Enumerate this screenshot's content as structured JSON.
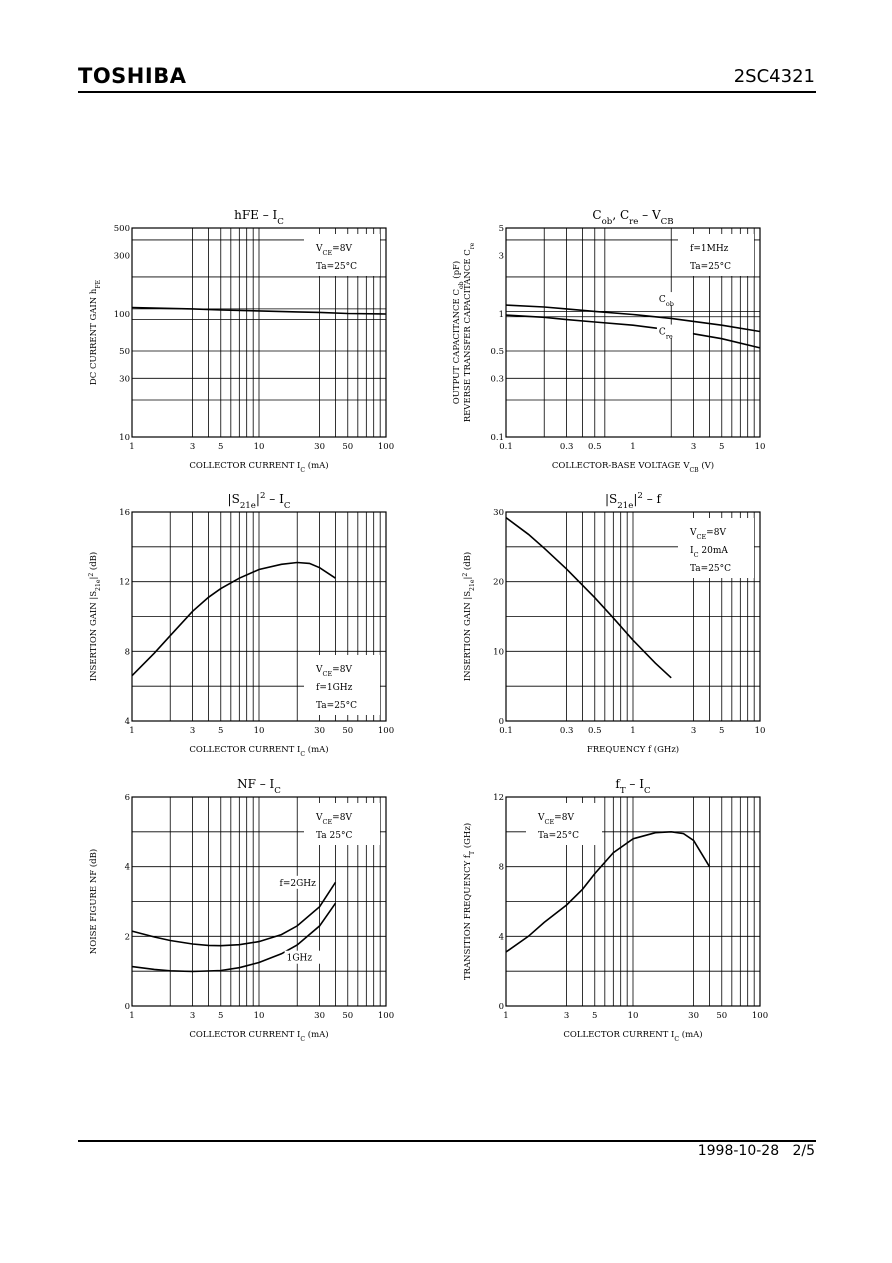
{
  "header": {
    "brand": "TOSHIBA",
    "part_number": "2SC4321"
  },
  "footer": {
    "date": "1998-10-28",
    "page": "2/5"
  },
  "chart_data": [
    {
      "id": "hfe",
      "type": "line",
      "title": "hFE – IC",
      "title_parts": [
        [
          "hFE",
          ""
        ],
        [
          " – I",
          ""
        ],
        [
          "C",
          "sub"
        ]
      ],
      "xlabel_parts": [
        [
          "COLLECTOR CURRENT   I",
          ""
        ],
        [
          "C",
          "sub"
        ],
        [
          "   (mA)",
          ""
        ]
      ],
      "ylabel_lines": [
        [
          [
            "DC CURRENT GAIN   h",
            ""
          ],
          [
            "FE",
            "sub"
          ]
        ]
      ],
      "xscale": "log",
      "yscale": "log",
      "xlim": [
        1,
        100
      ],
      "ylim": [
        10,
        500
      ],
      "xticks": [
        1,
        3,
        5,
        10,
        30,
        50,
        100
      ],
      "xtick_labels": [
        "1",
        "3",
        "5",
        "10",
        "30",
        "50",
        "100"
      ],
      "yticks": [
        10,
        30,
        50,
        100,
        300,
        500
      ],
      "ytick_labels": [
        "10",
        "30",
        "50",
        "100",
        "300",
        "500"
      ],
      "xgrid": [
        3,
        4,
        5,
        6,
        7,
        8,
        9,
        10,
        30,
        40,
        50,
        60,
        70,
        80,
        90
      ],
      "ygrid": [
        20,
        30,
        50,
        90,
        110,
        200,
        400
      ],
      "grid": true,
      "cond_pos": "top-right",
      "conditions": [
        [
          [
            "V",
            ""
          ],
          [
            "CE",
            "sub"
          ],
          [
            "=8V",
            ""
          ]
        ],
        [
          [
            "Ta=25°C",
            ""
          ]
        ]
      ],
      "series": [
        {
          "points": [
            [
              1,
              113
            ],
            [
              2,
              111
            ],
            [
              3,
              110
            ],
            [
              5,
              108
            ],
            [
              10,
              106
            ],
            [
              20,
              104
            ],
            [
              30,
              103
            ],
            [
              50,
              101
            ],
            [
              100,
              100
            ]
          ]
        }
      ]
    },
    {
      "id": "cap",
      "type": "line",
      "title": "Cob, Cre – VCB",
      "title_parts": [
        [
          "C",
          ""
        ],
        [
          "ob",
          "sub"
        ],
        [
          ", C",
          ""
        ],
        [
          "re",
          "sub"
        ],
        [
          "  –  V",
          ""
        ],
        [
          "CB",
          "sub"
        ]
      ],
      "xlabel_parts": [
        [
          "COLLECTOR-BASE VOLTAGE   V",
          ""
        ],
        [
          "CB",
          "sub"
        ],
        [
          "   (V)",
          ""
        ]
      ],
      "ylabel_lines": [
        [
          [
            "OUTPUT CAPACITANCE   C",
            ""
          ],
          [
            "ob",
            "sub"
          ],
          [
            "   (pF)",
            ""
          ]
        ],
        [
          [
            "REVERSE TRANSFER CAPACITANCE   C",
            ""
          ],
          [
            "re",
            "sub"
          ]
        ]
      ],
      "xscale": "log",
      "yscale": "log",
      "xlim": [
        0.1,
        10
      ],
      "ylim": [
        0.1,
        5
      ],
      "xticks": [
        0.1,
        0.3,
        0.5,
        1,
        3,
        5,
        10
      ],
      "xtick_labels": [
        "0.1",
        "0.3",
        "0.5",
        "1",
        "3",
        "5",
        "10"
      ],
      "yticks": [
        0.1,
        0.3,
        0.5,
        1,
        3,
        5
      ],
      "ytick_labels": [
        "0.1",
        "0.3",
        "0.5",
        "1",
        "3",
        "5"
      ],
      "xgrid": [
        0.2,
        0.3,
        0.4,
        0.5,
        0.6,
        2,
        3,
        4,
        5,
        6,
        7,
        8,
        9
      ],
      "ygrid": [
        0.2,
        0.3,
        0.5,
        0.95,
        1.05,
        2,
        4
      ],
      "grid": true,
      "cond_pos": "top-right",
      "conditions": [
        [
          [
            "f=1MHz",
            ""
          ]
        ],
        [
          [
            "Ta=25°C",
            ""
          ]
        ]
      ],
      "series": [
        {
          "name": "Cob",
          "name_parts": [
            [
              "C",
              ""
            ],
            [
              "ob",
              "sub"
            ]
          ],
          "label_at": [
            1.6,
            1.25
          ],
          "points": [
            [
              0.1,
              1.18
            ],
            [
              0.2,
              1.14
            ],
            [
              0.3,
              1.1
            ],
            [
              0.5,
              1.05
            ],
            [
              1,
              0.99
            ],
            [
              2,
              0.92
            ],
            [
              3,
              0.87
            ],
            [
              5,
              0.81
            ],
            [
              10,
              0.72
            ]
          ]
        },
        {
          "name": "Cre",
          "name_parts": [
            [
              "C",
              ""
            ],
            [
              "re",
              "sub"
            ]
          ],
          "label_at": [
            1.6,
            0.68
          ],
          "points": [
            [
              0.1,
              0.98
            ],
            [
              0.2,
              0.94
            ],
            [
              0.3,
              0.9
            ],
            [
              0.5,
              0.86
            ],
            [
              1,
              0.81
            ],
            [
              2,
              0.74
            ],
            [
              3,
              0.69
            ],
            [
              5,
              0.63
            ],
            [
              10,
              0.53
            ]
          ]
        }
      ]
    },
    {
      "id": "s21_ic",
      "type": "line",
      "title": "|S21e|2 – IC",
      "title_parts": [
        [
          "|S",
          ""
        ],
        [
          "21e",
          "sub"
        ],
        [
          "|",
          ""
        ],
        [
          "2",
          "sup"
        ],
        [
          " – I",
          ""
        ],
        [
          "C",
          "sub"
        ]
      ],
      "xlabel_parts": [
        [
          "COLLECTOR CURRENT   I",
          ""
        ],
        [
          "C",
          "sub"
        ],
        [
          "   (mA)",
          ""
        ]
      ],
      "ylabel_lines": [
        [
          [
            "INSERTION GAIN   |S",
            ""
          ],
          [
            "21e",
            "sub"
          ],
          [
            "|",
            ""
          ],
          [
            "2",
            "sup"
          ],
          [
            "   (dB)",
            ""
          ]
        ]
      ],
      "xscale": "log",
      "yscale": "linear",
      "xlim": [
        1,
        100
      ],
      "ylim": [
        4,
        16
      ],
      "xticks": [
        1,
        3,
        5,
        10,
        30,
        50,
        100
      ],
      "xtick_labels": [
        "1",
        "3",
        "5",
        "10",
        "30",
        "50",
        "100"
      ],
      "yticks": [
        4,
        8,
        12,
        16
      ],
      "ytick_labels": [
        "4",
        "8",
        "12",
        "16"
      ],
      "xgrid": [
        2,
        3,
        4,
        5,
        6,
        7,
        8,
        9,
        10,
        20,
        30,
        40,
        50,
        60,
        70,
        80,
        90
      ],
      "ygrid": [
        6,
        8,
        10,
        12,
        14
      ],
      "grid": true,
      "cond_pos": "bottom-right",
      "conditions": [
        [
          [
            "V",
            ""
          ],
          [
            "CE",
            "sub"
          ],
          [
            "=8V",
            ""
          ]
        ],
        [
          [
            "f=1GHz",
            ""
          ]
        ],
        [
          [
            "Ta=25°C",
            ""
          ]
        ]
      ],
      "series": [
        {
          "points": [
            [
              1,
              6.6
            ],
            [
              1.5,
              7.9
            ],
            [
              2,
              8.9
            ],
            [
              3,
              10.3
            ],
            [
              4,
              11.1
            ],
            [
              5,
              11.6
            ],
            [
              7,
              12.2
            ],
            [
              10,
              12.7
            ],
            [
              15,
              13.0
            ],
            [
              20,
              13.1
            ],
            [
              25,
              13.05
            ],
            [
              30,
              12.8
            ],
            [
              40,
              12.2
            ]
          ]
        }
      ]
    },
    {
      "id": "s21_f",
      "type": "line",
      "title": "|S21e|2 – f",
      "title_parts": [
        [
          "|S",
          ""
        ],
        [
          "21e",
          "sub"
        ],
        [
          "|",
          ""
        ],
        [
          "2",
          "sup"
        ],
        [
          "  –  f",
          ""
        ]
      ],
      "xlabel_parts": [
        [
          "FREQUENCY   f   (GHz)",
          ""
        ]
      ],
      "ylabel_lines": [
        [
          [
            "INSERTION GAIN   |S",
            ""
          ],
          [
            "21e",
            "sub"
          ],
          [
            "|",
            ""
          ],
          [
            "2",
            "sup"
          ],
          [
            "   (dB)",
            ""
          ]
        ]
      ],
      "xscale": "log",
      "yscale": "linear",
      "xlim": [
        0.1,
        10
      ],
      "ylim": [
        0,
        30
      ],
      "xticks": [
        0.1,
        0.3,
        0.5,
        1,
        3,
        5,
        10
      ],
      "xtick_labels": [
        "0.1",
        "0.3",
        "0.5",
        "1",
        "3",
        "5",
        "10"
      ],
      "yticks": [
        0,
        10,
        20,
        30
      ],
      "ytick_labels": [
        "0",
        "10",
        "20",
        "30"
      ],
      "xgrid": [
        0.3,
        0.4,
        0.5,
        0.6,
        0.7,
        0.8,
        0.9,
        1,
        3,
        4,
        5,
        6,
        7,
        8,
        9
      ],
      "ygrid": [
        5,
        10,
        15,
        20,
        25
      ],
      "grid": true,
      "cond_pos": "top-right",
      "conditions": [
        [
          [
            "V",
            ""
          ],
          [
            "CE",
            "sub"
          ],
          [
            "=8V",
            ""
          ]
        ],
        [
          [
            "I",
            ""
          ],
          [
            "C",
            "sub"
          ],
          [
            "   20mA",
            ""
          ]
        ],
        [
          [
            "Ta=25°C",
            ""
          ]
        ]
      ],
      "series": [
        {
          "points": [
            [
              0.1,
              29.2
            ],
            [
              0.15,
              26.8
            ],
            [
              0.2,
              24.8
            ],
            [
              0.3,
              21.8
            ],
            [
              0.5,
              17.7
            ],
            [
              0.7,
              14.8
            ],
            [
              1,
              11.6
            ],
            [
              1.5,
              8.3
            ],
            [
              2,
              6.2
            ]
          ]
        }
      ]
    },
    {
      "id": "nf",
      "type": "line",
      "title": "NF – IC",
      "title_parts": [
        [
          "NF  –  I",
          ""
        ],
        [
          "C",
          "sub"
        ]
      ],
      "xlabel_parts": [
        [
          "COLLECTOR CURRENT   I",
          ""
        ],
        [
          "C",
          "sub"
        ],
        [
          "   (mA)",
          ""
        ]
      ],
      "ylabel_lines": [
        [
          [
            "NOISE FIGURE   NF   (dB)",
            ""
          ]
        ]
      ],
      "xscale": "log",
      "yscale": "linear",
      "xlim": [
        1,
        100
      ],
      "ylim": [
        0,
        6
      ],
      "xticks": [
        1,
        3,
        5,
        10,
        30,
        50,
        100
      ],
      "xtick_labels": [
        "1",
        "3",
        "5",
        "10",
        "30",
        "50",
        "100"
      ],
      "yticks": [
        0,
        2,
        4,
        6
      ],
      "ytick_labels": [
        "0",
        "2",
        "4",
        "6"
      ],
      "xgrid": [
        2,
        3,
        4,
        5,
        6,
        7,
        8,
        9,
        10,
        20,
        30,
        40,
        50,
        60,
        70,
        80,
        90
      ],
      "ygrid": [
        1,
        2,
        3,
        4,
        5
      ],
      "grid": true,
      "cond_pos": "top-right",
      "conditions": [
        [
          [
            "V",
            ""
          ],
          [
            "CE",
            "sub"
          ],
          [
            "=8V",
            ""
          ]
        ],
        [
          [
            "Ta   25°C",
            ""
          ]
        ]
      ],
      "series": [
        {
          "name": "f=2GHz",
          "name_parts": [
            [
              "f=2GHz",
              ""
            ]
          ],
          "label_at": [
            14.5,
            3.45
          ],
          "points": [
            [
              1,
              2.15
            ],
            [
              1.5,
              1.98
            ],
            [
              2,
              1.88
            ],
            [
              3,
              1.78
            ],
            [
              4,
              1.74
            ],
            [
              5,
              1.73
            ],
            [
              7,
              1.76
            ],
            [
              10,
              1.85
            ],
            [
              15,
              2.05
            ],
            [
              20,
              2.3
            ],
            [
              30,
              2.85
            ],
            [
              40,
              3.55
            ]
          ]
        },
        {
          "name": "1GHz",
          "name_parts": [
            [
              "1GHz",
              ""
            ]
          ],
          "label_at": [
            16.5,
            1.3
          ],
          "points": [
            [
              1,
              1.13
            ],
            [
              1.5,
              1.05
            ],
            [
              2,
              1.01
            ],
            [
              3,
              0.99
            ],
            [
              5,
              1.02
            ],
            [
              7,
              1.1
            ],
            [
              10,
              1.25
            ],
            [
              15,
              1.5
            ],
            [
              20,
              1.75
            ],
            [
              30,
              2.3
            ],
            [
              40,
              2.95
            ]
          ]
        }
      ]
    },
    {
      "id": "ft",
      "type": "line",
      "title": "fT – IC",
      "title_parts": [
        [
          "f",
          ""
        ],
        [
          "T",
          "sub"
        ],
        [
          "  –  I",
          ""
        ],
        [
          "C",
          "sub"
        ]
      ],
      "xlabel_parts": [
        [
          "COLLECTOR CURRENT   I",
          ""
        ],
        [
          "C",
          "sub"
        ],
        [
          "   (mA)",
          ""
        ]
      ],
      "ylabel_lines": [
        [
          [
            "TRANSITION FREQUENCY   f",
            ""
          ],
          [
            "T",
            "sub"
          ],
          [
            "   (GHz)",
            ""
          ]
        ]
      ],
      "xscale": "log",
      "yscale": "linear",
      "xlim": [
        1,
        100
      ],
      "ylim": [
        0,
        12
      ],
      "xticks": [
        1,
        3,
        5,
        10,
        30,
        50,
        100
      ],
      "xtick_labels": [
        "1",
        "3",
        "5",
        "10",
        "30",
        "50",
        "100"
      ],
      "yticks": [
        0,
        4,
        8,
        12
      ],
      "ytick_labels": [
        "0",
        "4",
        "8",
        "12"
      ],
      "xgrid": [
        3,
        4,
        5,
        6,
        7,
        8,
        9,
        10,
        30,
        40,
        50,
        60,
        70,
        80,
        90
      ],
      "ygrid": [
        2,
        4,
        6,
        8,
        10
      ],
      "grid": true,
      "cond_pos": "top-left",
      "conditions": [
        [
          [
            "V",
            ""
          ],
          [
            "CE",
            "sub"
          ],
          [
            "=8V",
            ""
          ]
        ],
        [
          [
            "Ta=25°C",
            ""
          ]
        ]
      ],
      "series": [
        {
          "points": [
            [
              1,
              3.1
            ],
            [
              1.5,
              4.0
            ],
            [
              2,
              4.8
            ],
            [
              3,
              5.8
            ],
            [
              4,
              6.7
            ],
            [
              5,
              7.6
            ],
            [
              7,
              8.8
            ],
            [
              10,
              9.6
            ],
            [
              15,
              9.95
            ],
            [
              20,
              10.0
            ],
            [
              25,
              9.9
            ],
            [
              30,
              9.5
            ],
            [
              40,
              8.0
            ]
          ]
        }
      ]
    }
  ]
}
